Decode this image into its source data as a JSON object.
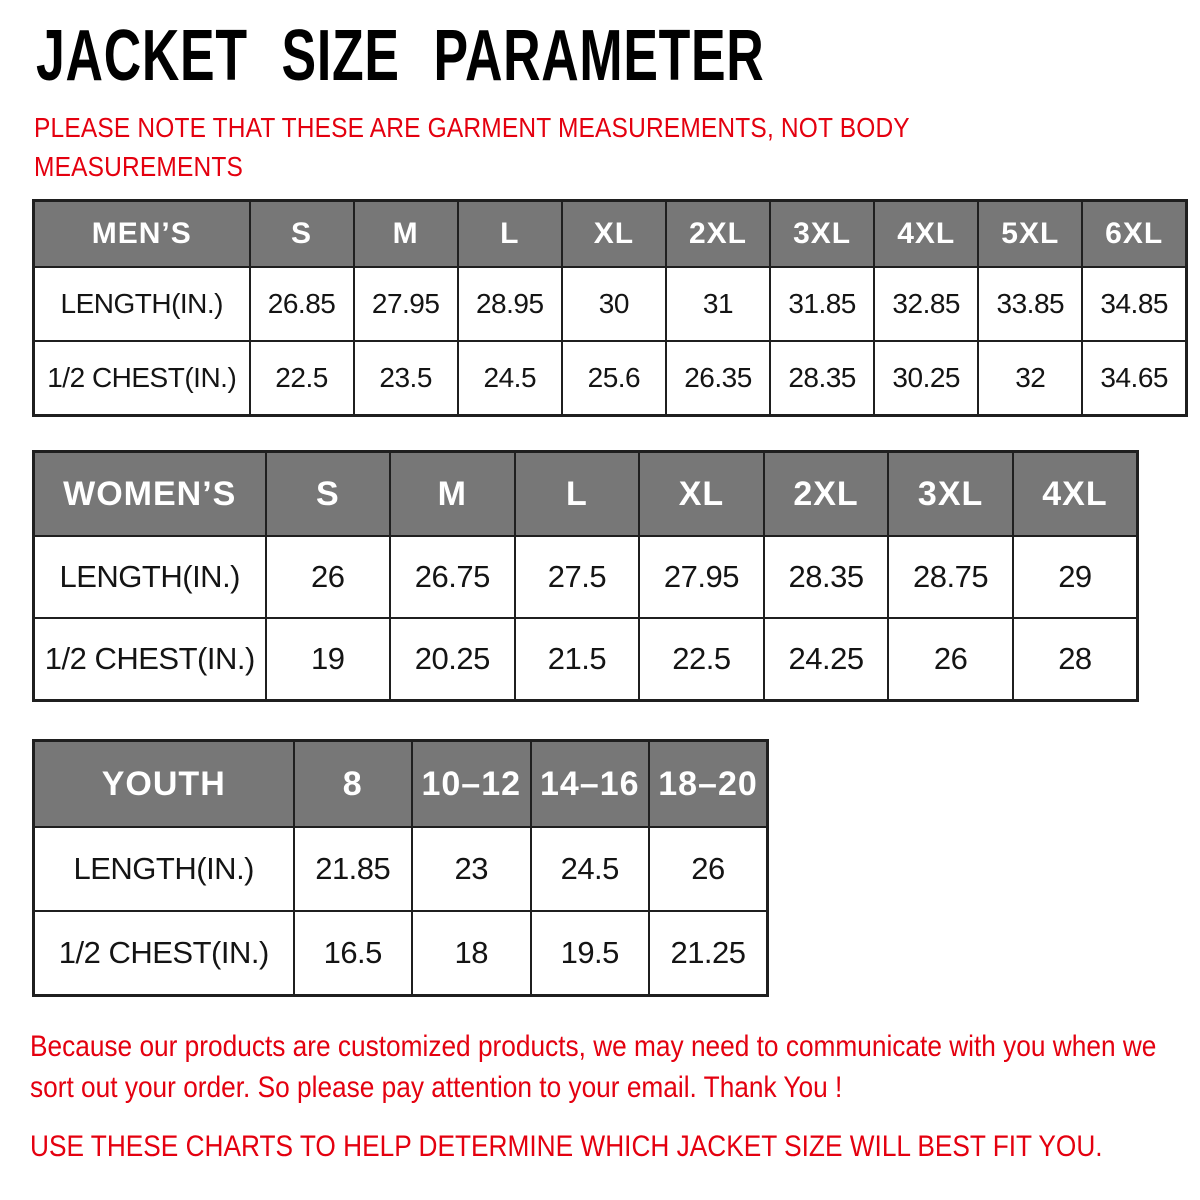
{
  "title": "JACKET SIZE PARAMETER",
  "note": "PLEASE NOTE THAT THESE ARE GARMENT MEASUREMENTS, NOT BODY MEASUREMENTS",
  "colors": {
    "accent_red": "#e4000f",
    "header_gray": "#777777",
    "border": "#1f1f1f",
    "cell_text": "#141414"
  },
  "tables": [
    {
      "id": "men",
      "name": "MEN’S",
      "sizes": [
        "S",
        "M",
        "L",
        "XL",
        "2XL",
        "3XL",
        "4XL",
        "5XL",
        "6XL"
      ],
      "rows": [
        {
          "label": "LENGTH(IN.)",
          "values": [
            "26.85",
            "27.95",
            "28.95",
            "30",
            "31",
            "31.85",
            "32.85",
            "33.85",
            "34.85"
          ]
        },
        {
          "label": "1/2 CHEST(IN.)",
          "values": [
            "22.5",
            "23.5",
            "24.5",
            "25.6",
            "26.35",
            "28.35",
            "30.25",
            "32",
            "34.65"
          ]
        }
      ]
    },
    {
      "id": "women",
      "name": "WOMEN’S",
      "sizes": [
        "S",
        "M",
        "L",
        "XL",
        "2XL",
        "3XL",
        "4XL"
      ],
      "rows": [
        {
          "label": "LENGTH(IN.)",
          "values": [
            "26",
            "26.75",
            "27.5",
            "27.95",
            "28.35",
            "28.75",
            "29"
          ]
        },
        {
          "label": "1/2 CHEST(IN.)",
          "values": [
            "19",
            "20.25",
            "21.5",
            "22.5",
            "24.25",
            "26",
            "28"
          ]
        }
      ]
    },
    {
      "id": "youth",
      "name": "YOUTH",
      "sizes": [
        "8",
        "10–12",
        "14–16",
        "18–20"
      ],
      "rows": [
        {
          "label": "LENGTH(IN.)",
          "values": [
            "21.85",
            "23",
            "24.5",
            "26"
          ]
        },
        {
          "label": "1/2 CHEST(IN.)",
          "values": [
            "16.5",
            "18",
            "19.5",
            "21.25"
          ]
        }
      ]
    }
  ],
  "footer": {
    "line1": "Because our products are customized products, we may need to communicate with you when we sort out your order. So please pay attention to your email. Thank You !",
    "line2": "USE THESE CHARTS TO HELP DETERMINE WHICH JACKET SIZE WILL BEST FIT YOU."
  }
}
